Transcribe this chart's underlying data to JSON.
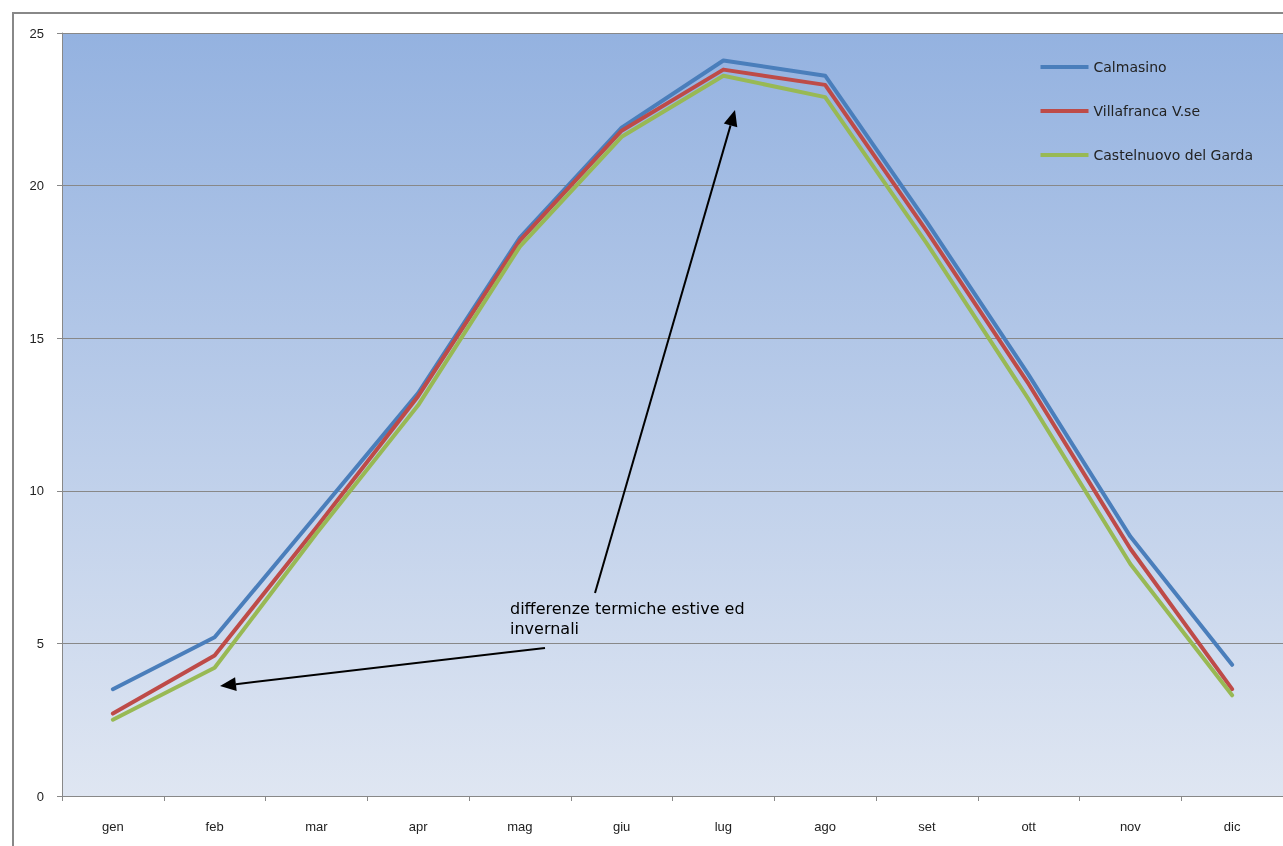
{
  "chart_data": {
    "type": "line",
    "categories": [
      "gen",
      "feb",
      "mar",
      "apr",
      "mag",
      "giu",
      "lug",
      "ago",
      "set",
      "ott",
      "nov",
      "dic"
    ],
    "series": [
      {
        "name": "Calmasino",
        "color": "#4a7ebb",
        "values": [
          3.5,
          5.2,
          9.2,
          13.2,
          18.3,
          21.9,
          24.1,
          23.6,
          18.8,
          13.8,
          8.5,
          4.3
        ]
      },
      {
        "name": "Villafranca V.se",
        "color": "#be4b48",
        "values": [
          2.7,
          4.6,
          8.8,
          13.1,
          18.2,
          21.8,
          23.8,
          23.3,
          18.5,
          13.5,
          8.1,
          3.5
        ]
      },
      {
        "name": "Castelnuovo del Garda",
        "color": "#98b954",
        "values": [
          2.5,
          4.2,
          8.6,
          12.8,
          18.0,
          21.6,
          23.6,
          22.9,
          18.1,
          13.0,
          7.6,
          3.3
        ]
      }
    ],
    "ylim": [
      0,
      25
    ],
    "yticks": [
      0,
      5,
      10,
      15,
      20,
      25
    ],
    "grid": "y",
    "legend": "top right",
    "marker": "none",
    "line_style": "solid",
    "annotations": [
      "differenze termiche estive ed\ninvernali"
    ]
  }
}
